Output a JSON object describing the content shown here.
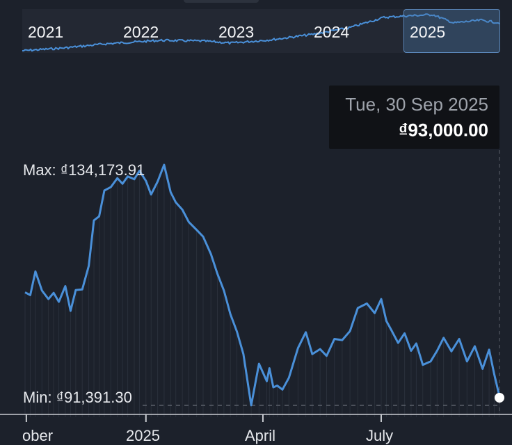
{
  "navigator": {
    "years": [
      "2021",
      "2022",
      "2023",
      "2024",
      "2025"
    ],
    "selected_range": "2025"
  },
  "tooltip": {
    "date": "Tue, 30 Sep 2025",
    "value": "₫93,000.00"
  },
  "chart_data": {
    "type": "line",
    "currency": "₫",
    "max_label": "Max: ₫134,173.91",
    "min_label": "Min: ₫91,391.30",
    "max_value": 134173.91,
    "min_value": 91391.3,
    "x_tick_labels": [
      "ober",
      "2025",
      "April",
      "July"
    ],
    "x_ticks": [
      "2024-10-01",
      "2025-01-01",
      "2025-04-01",
      "2025-07-01"
    ],
    "x_range": [
      "2024-09-30",
      "2025-09-30"
    ],
    "y_range": [
      91391.3,
      134173.91
    ],
    "grid": false,
    "series": [
      {
        "x": [
          "2024-09-30",
          "2024-10-04",
          "2024-10-08",
          "2024-10-13",
          "2024-10-18",
          "2024-10-22",
          "2024-10-26",
          "2024-10-31",
          "2024-11-04",
          "2024-11-08",
          "2024-11-13",
          "2024-11-18",
          "2024-11-22",
          "2024-11-26",
          "2024-11-30",
          "2024-12-05",
          "2024-12-10",
          "2024-12-14",
          "2024-12-18",
          "2024-12-23",
          "2024-12-27",
          "2025-01-01",
          "2025-01-05",
          "2025-01-10",
          "2025-01-15",
          "2025-01-20",
          "2025-01-24",
          "2025-01-29",
          "2025-02-03",
          "2025-02-09",
          "2025-02-14",
          "2025-02-20",
          "2025-02-25",
          "2025-03-02",
          "2025-03-07",
          "2025-03-12",
          "2025-03-17",
          "2025-03-23",
          "2025-03-29",
          "2025-04-04",
          "2025-04-06",
          "2025-04-09",
          "2025-04-12",
          "2025-04-16",
          "2025-04-21",
          "2025-04-28",
          "2025-05-04",
          "2025-05-09",
          "2025-05-15",
          "2025-05-20",
          "2025-05-26",
          "2025-06-01",
          "2025-06-07",
          "2025-06-13",
          "2025-06-20",
          "2025-06-26",
          "2025-07-01",
          "2025-07-05",
          "2025-07-09",
          "2025-07-14",
          "2025-07-19",
          "2025-07-24",
          "2025-07-28",
          "2025-08-02",
          "2025-08-08",
          "2025-08-13",
          "2025-08-18",
          "2025-08-24",
          "2025-08-30",
          "2025-09-05",
          "2025-09-11",
          "2025-09-17",
          "2025-09-22",
          "2025-09-26",
          "2025-09-30"
        ],
        "values": [
          111500,
          111000,
          115200,
          111800,
          110300,
          111400,
          109800,
          112600,
          108200,
          111900,
          112000,
          116200,
          124300,
          125000,
          129600,
          130200,
          131800,
          130800,
          132100,
          131600,
          133100,
          131300,
          128900,
          131200,
          134174,
          129300,
          127500,
          126200,
          124000,
          122600,
          121400,
          118300,
          114800,
          111800,
          107600,
          104500,
          100500,
          91400,
          98800,
          95700,
          98000,
          94600,
          94900,
          94200,
          96300,
          101600,
          104400,
          100500,
          101400,
          100200,
          103200,
          103000,
          104600,
          108700,
          109500,
          107800,
          110300,
          106400,
          104700,
          102500,
          104200,
          101100,
          102400,
          98600,
          99200,
          101100,
          103400,
          101000,
          103200,
          99200,
          101900,
          97900,
          101300,
          96900,
          93000
        ]
      }
    ]
  }
}
